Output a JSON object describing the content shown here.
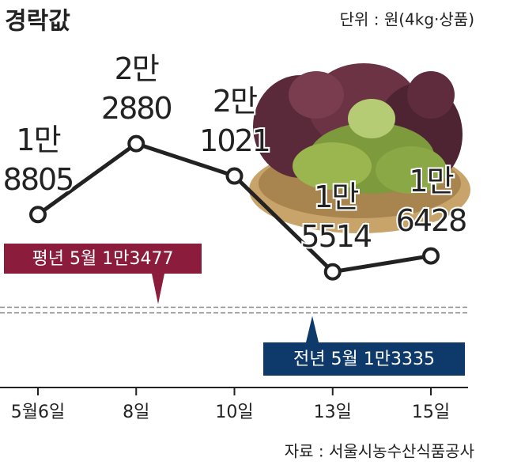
{
  "chart_data": {
    "type": "line",
    "title": "경락값",
    "subtitle": "단위 : 원(4kg·상품)",
    "source": "자료 : 서울시농수산식품공사",
    "categories": [
      "5월6일",
      "8일",
      "10일",
      "13일",
      "15일"
    ],
    "values": [
      18805,
      22880,
      21021,
      15514,
      16428
    ],
    "value_labels": [
      [
        "1만",
        "8805"
      ],
      [
        "2만",
        "2880"
      ],
      [
        "2만",
        "1021"
      ],
      [
        "1만",
        "5514"
      ],
      [
        "1만",
        "6428"
      ]
    ],
    "color": "#222222",
    "ylim": [
      10000,
      25000
    ],
    "reference_lines": [
      {
        "label": "평년 5월 1만3477",
        "value": 13477,
        "color": "#8b1c3c"
      },
      {
        "label": "전년 5월 1만3335",
        "value": 13335,
        "color": "#0e3a6b"
      }
    ]
  }
}
